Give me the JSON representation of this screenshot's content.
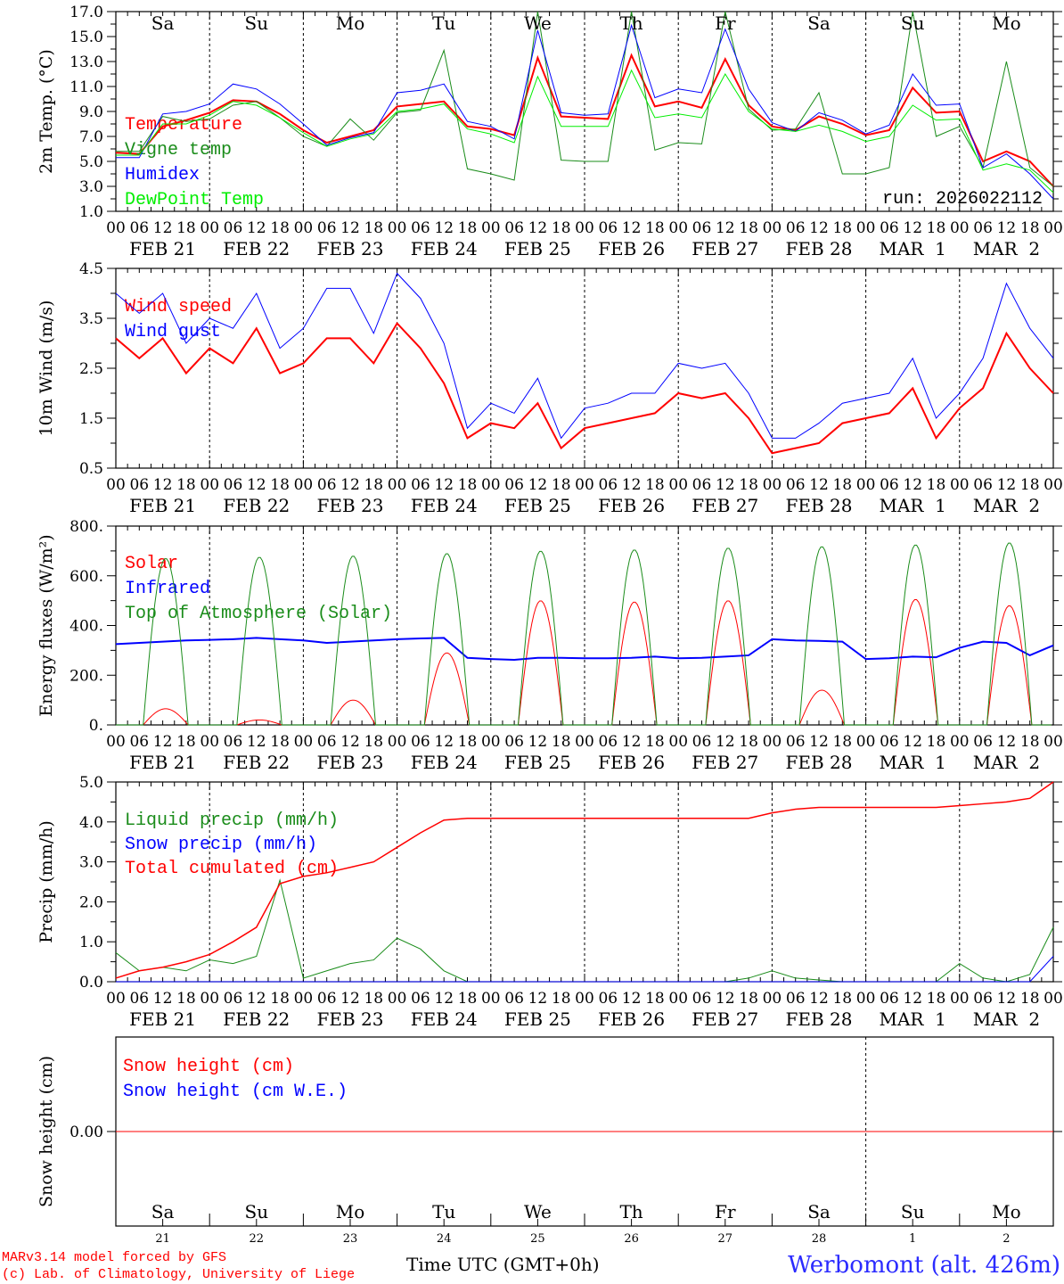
{
  "x_axis": {
    "hour_labels": [
      "00",
      "06",
      "12",
      "18"
    ],
    "dates": [
      "FEB 21",
      "FEB 22",
      "FEB 23",
      "FEB 24",
      "FEB 25",
      "FEB 26",
      "FEB 27",
      "FEB 28",
      "MAR  1",
      "MAR  2"
    ],
    "day_names": [
      "Sa",
      "Su",
      "Mo",
      "Tu",
      "We",
      "Th",
      "Fr",
      "Sa",
      "Su",
      "Mo"
    ],
    "day_colors": [
      "#ff0000",
      "#ff0000",
      "#000000",
      "#000000",
      "#000000",
      "#000000",
      "#000000",
      "#ff0000",
      "#ff0000",
      "#000000"
    ],
    "day_numbers": [
      "21",
      "22",
      "23",
      "24",
      "25",
      "26",
      "27",
      "28",
      "1",
      "2"
    ],
    "step_hours": 6
  },
  "run_label": "run: 2026022112",
  "footer": {
    "line1": "MARv3.14 model forced by GFS",
    "line2": "(c) Lab. of Climatology, University of Liege",
    "time_label": "Time UTC (GMT+0h)",
    "station": "Werbomont (alt. 426m)"
  },
  "chart_data": [
    {
      "type": "line",
      "ylabel": "2m Temp. (°C)",
      "ylim": [
        1,
        17
      ],
      "yticks": [
        "1.0",
        "3.0",
        "5.0",
        "7.0",
        "9.0",
        "11.0",
        "13.0",
        "15.0",
        "17.0"
      ],
      "series": [
        {
          "name": "Temperature",
          "color": "#ff0000",
          "width": 2,
          "values": [
            5.7,
            5.6,
            7.8,
            8.3,
            8.9,
            9.9,
            9.8,
            8.8,
            7.5,
            6.5,
            7.0,
            7.5,
            9.4,
            9.6,
            9.8,
            7.8,
            7.6,
            7.1,
            13.3,
            8.6,
            8.5,
            8.4,
            13.5,
            9.4,
            9.8,
            9.3,
            13.2,
            9.5,
            7.8,
            7.5,
            8.6,
            8.0,
            7.1,
            7.5,
            10.9,
            8.9,
            9.0,
            5.0,
            5.8,
            5.0,
            3.0
          ]
        },
        {
          "name": "Vigne temp",
          "color": "#1a8c1a",
          "width": 1,
          "values": [
            5.8,
            5.8,
            8.6,
            8.2,
            8.4,
            9.5,
            9.8,
            8.5,
            7.0,
            6.2,
            8.4,
            6.7,
            8.9,
            9.1,
            13.9,
            4.4,
            4.0,
            3.5,
            17.0,
            5.1,
            5.0,
            5.0,
            17.0,
            5.9,
            6.5,
            6.4,
            17.0,
            9.2,
            7.5,
            7.6,
            10.5,
            4.0,
            4.0,
            4.5,
            17.0,
            7.0,
            7.8,
            4.5,
            13.0,
            4.5,
            3.0
          ]
        },
        {
          "name": "Humidex",
          "color": "#0000ff",
          "width": 1,
          "values": [
            5.3,
            5.3,
            8.8,
            9.0,
            9.6,
            11.2,
            10.8,
            9.6,
            8.0,
            6.3,
            6.9,
            7.3,
            10.5,
            10.7,
            11.2,
            8.2,
            7.8,
            6.8,
            15.5,
            8.9,
            8.7,
            8.8,
            15.9,
            10.1,
            10.8,
            10.5,
            15.6,
            10.8,
            8.1,
            7.4,
            8.9,
            8.3,
            7.2,
            7.9,
            12.0,
            9.5,
            9.6,
            4.5,
            5.6,
            4.0,
            2.0
          ]
        },
        {
          "name": "DewPoint Temp",
          "color": "#00ee00",
          "width": 1,
          "values": [
            5.5,
            5.5,
            8.0,
            8.0,
            8.7,
            9.8,
            9.5,
            8.5,
            7.3,
            6.2,
            6.8,
            7.2,
            9.0,
            9.2,
            9.6,
            7.6,
            7.2,
            6.5,
            11.8,
            7.8,
            7.8,
            7.8,
            12.3,
            8.5,
            8.8,
            8.5,
            12.0,
            9.0,
            7.6,
            7.4,
            7.9,
            7.4,
            6.6,
            7.0,
            9.5,
            8.3,
            8.4,
            4.3,
            4.8,
            4.3,
            2.5
          ]
        }
      ]
    },
    {
      "type": "line",
      "ylabel": "10m Wind (m/s)",
      "ylim": [
        0.5,
        4.5
      ],
      "yticks": [
        "0.5",
        "1.5",
        "2.5",
        "3.5",
        "4.5"
      ],
      "series": [
        {
          "name": "Wind speed",
          "color": "#ff0000",
          "width": 2,
          "values": [
            3.1,
            2.7,
            3.1,
            2.4,
            2.9,
            2.6,
            3.3,
            2.4,
            2.6,
            3.1,
            3.1,
            2.6,
            3.4,
            2.9,
            2.2,
            1.1,
            1.4,
            1.3,
            1.8,
            0.9,
            1.3,
            1.4,
            1.5,
            1.6,
            2.0,
            1.9,
            2.0,
            1.5,
            0.8,
            0.9,
            1.0,
            1.4,
            1.5,
            1.6,
            2.1,
            1.1,
            1.7,
            2.1,
            3.2,
            2.5,
            2.0
          ]
        },
        {
          "name": "Wind gust",
          "color": "#0000ff",
          "width": 1,
          "values": [
            4.0,
            3.6,
            4.0,
            3.0,
            3.5,
            3.3,
            4.0,
            2.9,
            3.3,
            4.1,
            4.1,
            3.2,
            4.4,
            3.9,
            3.0,
            1.3,
            1.8,
            1.6,
            2.3,
            1.1,
            1.7,
            1.8,
            2.0,
            2.0,
            2.6,
            2.5,
            2.6,
            2.0,
            1.1,
            1.1,
            1.4,
            1.8,
            1.9,
            2.0,
            2.7,
            1.5,
            2.0,
            2.7,
            4.2,
            3.3,
            2.7
          ]
        }
      ]
    },
    {
      "type": "line",
      "ylabel": "Energy fluxes (W/m²)",
      "ylim": [
        0,
        800
      ],
      "yticks": [
        "0.",
        "200.",
        "400.",
        "600.",
        "800."
      ],
      "series": [
        {
          "name": "Solar",
          "color": "#ff0000",
          "width": 1,
          "daily_peaks": [
            65,
            20,
            100,
            290,
            500,
            495,
            500,
            140,
            505,
            480
          ],
          "daylight_hours": [
            7,
            18.5
          ]
        },
        {
          "name": "Infrared",
          "color": "#0000ff",
          "width": 2,
          "values": [
            325,
            330,
            335,
            340,
            342,
            345,
            350,
            345,
            340,
            330,
            335,
            340,
            345,
            348,
            350,
            270,
            265,
            262,
            270,
            270,
            268,
            268,
            270,
            275,
            268,
            270,
            275,
            280,
            345,
            340,
            338,
            335,
            265,
            268,
            275,
            272,
            310,
            335,
            330,
            280,
            320
          ]
        },
        {
          "name": "Top of Atmosphere (Solar)",
          "color": "#1a8c1a",
          "width": 1,
          "daily_peaks": [
            670,
            675,
            680,
            690,
            700,
            705,
            712,
            718,
            725,
            733
          ],
          "daylight_hours": [
            7,
            18.5
          ]
        }
      ]
    },
    {
      "type": "line",
      "ylabel": "Precip (mm/h)",
      "ylim": [
        0,
        5.5
      ],
      "yticks": [
        "0.0",
        "1.0",
        "2.0",
        "3.0",
        "4.0",
        "5.0"
      ],
      "series": [
        {
          "name": "Liquid precip (mm/h)",
          "color": "#1a8c1a",
          "width": 1,
          "values": [
            0.8,
            0.3,
            0.4,
            0.3,
            0.6,
            0.5,
            0.7,
            2.8,
            0.1,
            0.3,
            0.5,
            0.6,
            1.2,
            0.9,
            0.3,
            0,
            0,
            0,
            0,
            0,
            0,
            0,
            0,
            0,
            0,
            0,
            0,
            0.1,
            0.3,
            0.1,
            0.05,
            0,
            0,
            0,
            0,
            0,
            0.5,
            0.1,
            0,
            0.2,
            1.5
          ]
        },
        {
          "name": "Snow precip (mm/h)",
          "color": "#0000ff",
          "width": 1,
          "values": [
            0,
            0,
            0,
            0,
            0,
            0,
            0,
            0,
            0,
            0,
            0,
            0,
            0,
            0,
            0,
            0,
            0,
            0,
            0,
            0,
            0,
            0,
            0,
            0,
            0,
            0,
            0,
            0,
            0,
            0,
            0,
            0,
            0,
            0,
            0,
            0,
            0,
            0,
            0,
            0,
            0.7
          ]
        },
        {
          "name": "Total cumulated (cm)",
          "color": "#ff0000",
          "width": 1.5,
          "values": [
            0.1,
            0.3,
            0.4,
            0.55,
            0.75,
            1.1,
            1.5,
            2.7,
            2.9,
            3.0,
            3.15,
            3.3,
            3.7,
            4.1,
            4.45,
            4.5,
            4.5,
            4.5,
            4.5,
            4.5,
            4.5,
            4.5,
            4.5,
            4.5,
            4.5,
            4.5,
            4.5,
            4.5,
            4.65,
            4.75,
            4.8,
            4.8,
            4.8,
            4.8,
            4.8,
            4.8,
            4.85,
            4.9,
            4.95,
            5.05,
            5.5
          ]
        }
      ]
    },
    {
      "type": "line",
      "ylabel": "Snow height (cm)",
      "ylim": [
        -1,
        1
      ],
      "yticks": [
        "0.00"
      ],
      "series": [
        {
          "name": "Snow height (cm)",
          "color": "#ff0000",
          "width": 1,
          "values": [
            0,
            0
          ]
        },
        {
          "name": "Snow height (cm W.E.)",
          "color": "#0000ff",
          "width": 0,
          "values": []
        }
      ]
    }
  ]
}
